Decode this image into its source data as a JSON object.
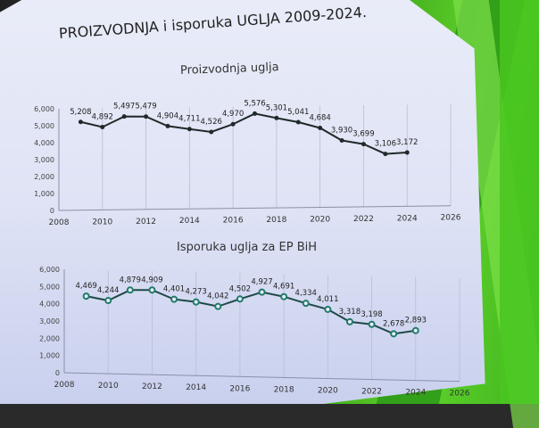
{
  "slide": {
    "title": "PROIZVODNJA i isporuka UGLJA 2009-2024."
  },
  "chart_data": [
    {
      "type": "line",
      "title": "Proizvodnja uglja",
      "xlabel": "",
      "ylabel": "",
      "x": [
        2009,
        2010,
        2011,
        2012,
        2013,
        2014,
        2015,
        2016,
        2017,
        2018,
        2019,
        2020,
        2021,
        2022,
        2023,
        2024
      ],
      "values": [
        5208,
        4892,
        5497,
        5479,
        4904,
        4711,
        4526,
        4970,
        5576,
        5301,
        5041,
        4684,
        3930,
        3699,
        3106,
        3172
      ],
      "labels": [
        "5,208",
        "4,892",
        "5,497",
        "5,479",
        "4,904",
        "4,711",
        "4,526",
        "4,970",
        "5,576",
        "5,301",
        "5,041",
        "4,684",
        "3,930",
        "3,699",
        "3,106",
        "3,172"
      ],
      "xticks": [
        "2008",
        "2010",
        "2012",
        "2014",
        "2016",
        "2018",
        "2020",
        "2022",
        "2024",
        "2026"
      ],
      "yticks": [
        "0",
        "1,000",
        "2,000",
        "3,000",
        "4,000",
        "5,000",
        "6,000"
      ],
      "xlim": [
        2008,
        2026
      ],
      "ylim": [
        0,
        6000
      ],
      "grid": "vertical",
      "line_color": "#1f2a2a",
      "marker": "filled-dot"
    },
    {
      "type": "line",
      "title": "Isporuka uglja za EP BiH",
      "xlabel": "",
      "ylabel": "",
      "x": [
        2009,
        2010,
        2011,
        2012,
        2013,
        2014,
        2015,
        2016,
        2017,
        2018,
        2019,
        2020,
        2021,
        2022,
        2023,
        2024
      ],
      "values": [
        4469,
        4244,
        4879,
        4909,
        4401,
        4273,
        4042,
        4502,
        4927,
        4691,
        4334,
        4011,
        3318,
        3198,
        2678,
        2893
      ],
      "labels": [
        "4,469",
        "4,244",
        "4,879",
        "4,909",
        "4,401",
        "4,273",
        "4,042",
        "4,502",
        "4,927",
        "4,691",
        "4,334",
        "4,011",
        "3,318",
        "3,198",
        "2,678",
        "2,893"
      ],
      "xticks": [
        "2008",
        "2010",
        "2012",
        "2014",
        "2016",
        "2018",
        "2020",
        "2022",
        "2024",
        "2026"
      ],
      "yticks": [
        "0",
        "1,000",
        "2,000",
        "3,000",
        "4,000",
        "5,000",
        "6,000"
      ],
      "xlim": [
        2008,
        2026
      ],
      "ylim": [
        0,
        6000
      ],
      "grid": "vertical",
      "line_color": "#1f4a48",
      "marker": "hollow-circle-teal"
    }
  ]
}
